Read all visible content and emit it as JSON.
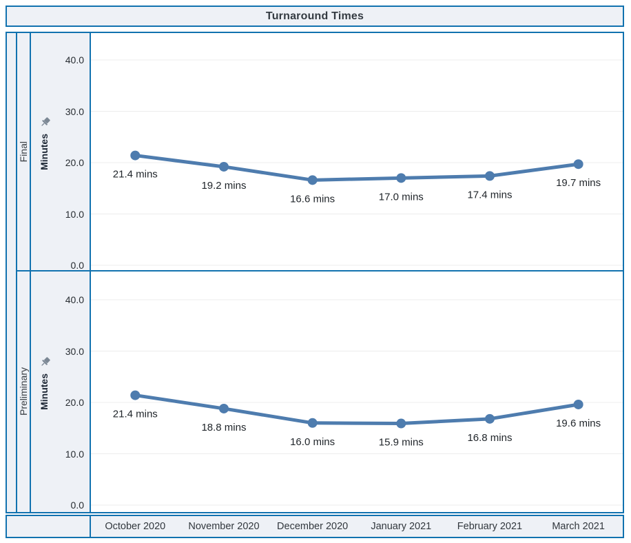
{
  "title": "Turnaround Times",
  "y_axis": {
    "title": "Minutes",
    "tick_labels": [
      "40.0",
      "30.0",
      "20.0",
      "10.0",
      "0.0"
    ],
    "pin_icon": "pin-icon"
  },
  "x_axis": {
    "labels": [
      "October 2020",
      "November 2020",
      "December 2020",
      "January 2021",
      "February 2021",
      "March 2021"
    ]
  },
  "chart_data": {
    "type": "line",
    "title": "Turnaround Times",
    "categories": [
      "October 2020",
      "November 2020",
      "December 2020",
      "January 2021",
      "February 2021",
      "March 2021"
    ],
    "series": [
      {
        "name": "Final",
        "values": [
          21.4,
          19.2,
          16.6,
          17.0,
          17.4,
          19.7
        ],
        "point_labels": [
          "21.4 mins",
          "19.2 mins",
          "16.6 mins",
          "17.0 mins",
          "17.4 mins",
          "19.7 mins"
        ]
      },
      {
        "name": "Preliminary",
        "values": [
          21.4,
          18.8,
          16.0,
          15.9,
          16.8,
          19.6
        ],
        "point_labels": [
          "21.4 mins",
          "18.8 mins",
          "16.0 mins",
          "15.9 mins",
          "16.8 mins",
          "19.6 mins"
        ]
      }
    ],
    "xlabel": "",
    "ylabel": "Minutes",
    "ylim": [
      0,
      45
    ],
    "yticks": [
      0,
      10,
      20,
      30,
      40
    ],
    "grid": true,
    "legend": "none",
    "layout": "two stacked row panels (Final above Preliminary), shared x-axis at bottom"
  },
  "colors": {
    "frame_blue": "#1172af",
    "line_blue": "#4e7cae",
    "panel_bg": "#eef1f6",
    "plot_bg": "#ffffff",
    "grid": "#ececec",
    "label_text": "#1f2429",
    "pin_gray": "#7b8794"
  }
}
